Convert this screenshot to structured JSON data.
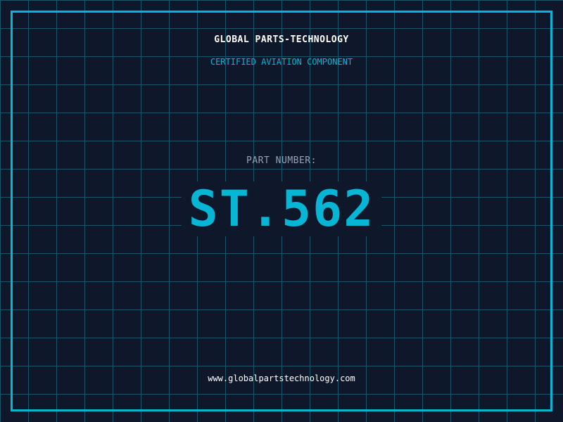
{
  "header": {
    "title": "GLOBAL PARTS-TECHNOLOGY",
    "subtitle": "CERTIFIED AVIATION COMPONENT"
  },
  "part": {
    "label": "PART NUMBER:",
    "number": "ST.562"
  },
  "footer": {
    "url": "www.globalpartstechnology.com"
  },
  "colors": {
    "background": "#0f172a",
    "accent": "#06b6d4",
    "grid": "#15566b",
    "label": "#94a3b8"
  }
}
